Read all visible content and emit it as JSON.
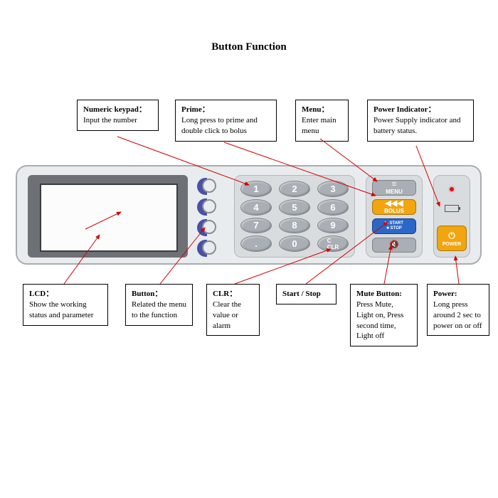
{
  "title": "Button Function",
  "callouts": {
    "numeric": {
      "title": "Numeric keypad：",
      "body": "Input the number"
    },
    "prime": {
      "title": "Prime：",
      "body": "Long press to prime and double click to bolus"
    },
    "menu": {
      "title": "Menu：",
      "body": "Enter main menu"
    },
    "powerind": {
      "title": "Power Indicator：",
      "body": "Power Supply indicator and battery status."
    },
    "lcd": {
      "title": "LCD：",
      "body": "Show the working status and parameter"
    },
    "button": {
      "title": "Button：",
      "body": "Related the menu to the function"
    },
    "clr": {
      "title": "CLR：",
      "body": "Clear the value or alarm"
    },
    "startstop": {
      "title": "Start / Stop",
      "body": ""
    },
    "mute": {
      "title": "Mute Button:",
      "body": "Press Mute, Light on, Press second time, Light off"
    },
    "power": {
      "title": "Power:",
      "body": "Long press around 2 sec to power on or off"
    }
  },
  "keypad": [
    "1",
    "2",
    "3",
    "4",
    "5",
    "6",
    "7",
    "8",
    "9",
    ".",
    "0",
    "C\nCLR"
  ],
  "actions": {
    "menu": "MENU",
    "bolus": "BOLUS",
    "start": "START",
    "stop": "STOP",
    "mute": ""
  },
  "power_label": "POWER",
  "colors": {
    "panel": "#e9ecee",
    "accent_blue": "#4a4fa8",
    "orange": "#f1a50e",
    "line": "#d20000"
  }
}
